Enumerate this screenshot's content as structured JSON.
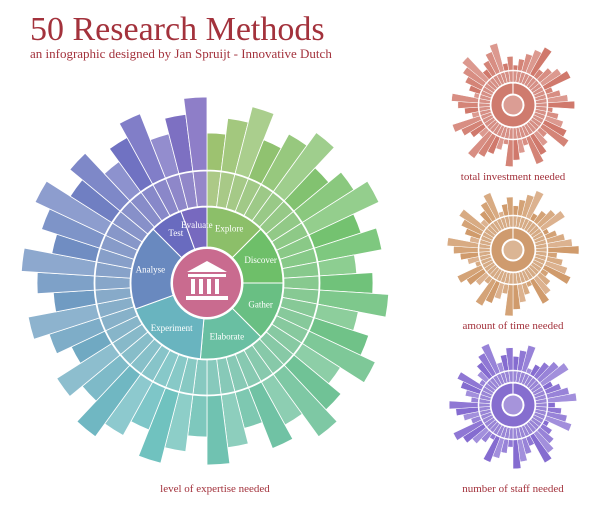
{
  "header": {
    "title": "50 Research Methods",
    "subtitle": "an infographic designed by Jan Spruijt - Innovative Dutch"
  },
  "main_wheel": {
    "caption": "level of expertise needed",
    "phases": [
      "Explore",
      "Discover",
      "Gather",
      "Elaborate",
      "Experiment",
      "Analyse",
      "Test",
      "Evaluate"
    ]
  },
  "side_wheels": [
    {
      "caption": "total investment needed"
    },
    {
      "caption": "amount of time needed"
    },
    {
      "caption": "number of staff needed"
    }
  ]
}
